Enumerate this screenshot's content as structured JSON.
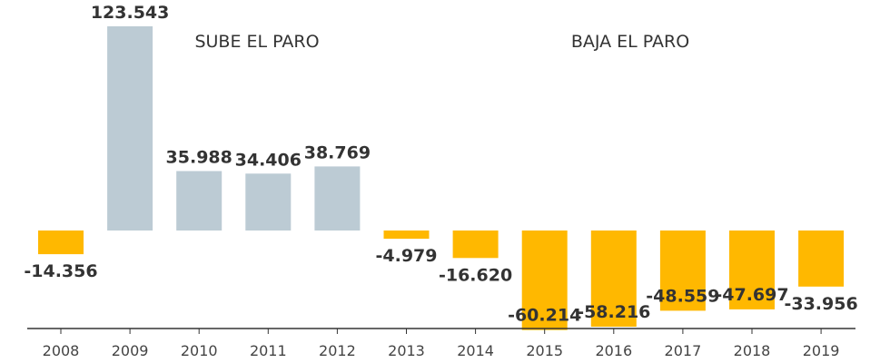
{
  "chart_data": {
    "type": "bar",
    "categories": [
      "2008",
      "2009",
      "2010",
      "2011",
      "2012",
      "2013",
      "2014",
      "2015",
      "2016",
      "2017",
      "2018",
      "2019"
    ],
    "values": [
      -14356,
      123543,
      35988,
      34406,
      38769,
      -4979,
      -16620,
      -60214,
      -58216,
      -48559,
      -47697,
      -33956
    ],
    "value_labels": [
      "-14.356",
      "123.543",
      "35.988",
      "34.406",
      "38.769",
      "-4.979",
      "-16.620",
      "-60.214",
      "-58.216",
      "-48.559",
      "-47.697",
      "-33.956"
    ],
    "ylim": [
      -62000,
      125000
    ],
    "annotations": {
      "increase": "SUBE EL PARO",
      "decrease": "BAJA EL PARO"
    },
    "colors": {
      "positive": "#bccbd4",
      "negative": "#ffb800",
      "axis": "#333333",
      "text": "#333333"
    },
    "grid": false,
    "legend": "none"
  }
}
